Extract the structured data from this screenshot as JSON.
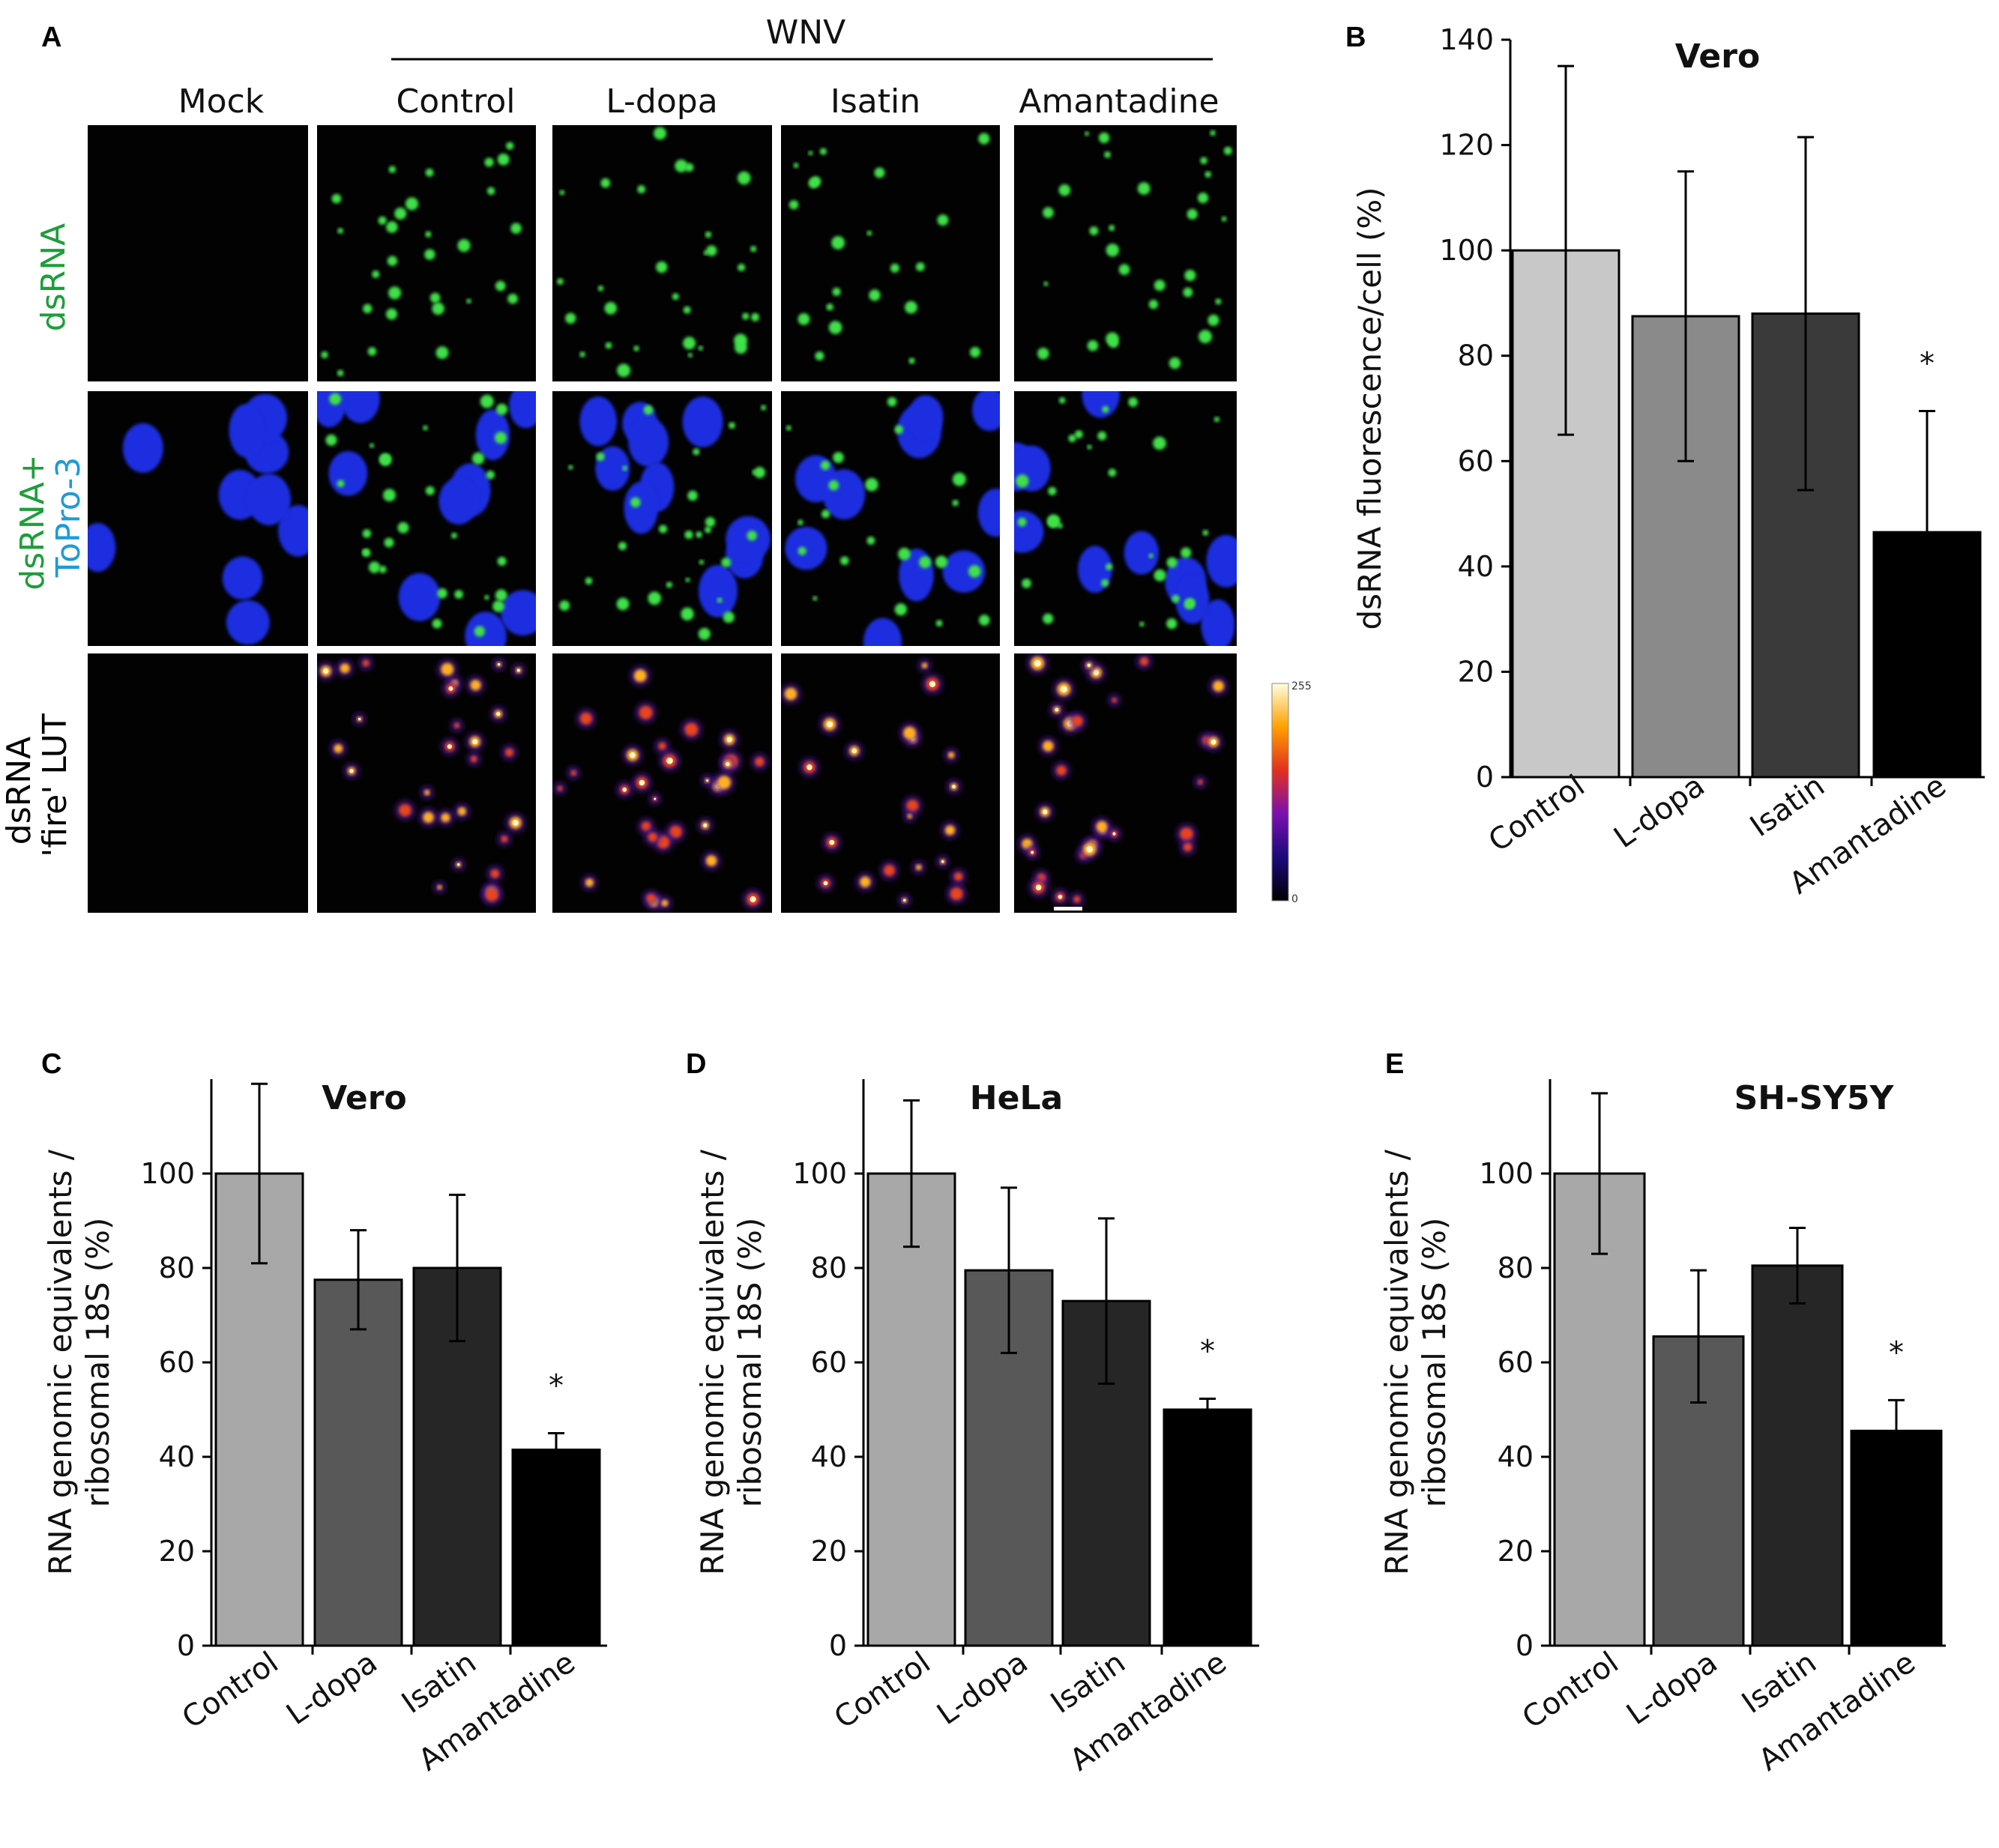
{
  "panel_letters": [
    "A",
    "B",
    "C",
    "D",
    "E"
  ],
  "panel_a": {
    "virus_label": "WNV",
    "column_labels": [
      "Mock",
      "Control",
      "L-dopa",
      "Isatin",
      "Amantadine"
    ],
    "row_labels": [
      {
        "line1": "dsRNA",
        "line2": "",
        "color1": "#1e9e3a",
        "color2": "#1e9e3a"
      },
      {
        "line1": "dsRNA+",
        "line2": "ToPro-3",
        "color1": "#1e9e3a",
        "color2": "#1d9bd6"
      },
      {
        "line1": "dsRNA",
        "line2": "'fire' LUT",
        "color1": "#000000",
        "color2": "#000000"
      }
    ],
    "colorbar_max": "255",
    "colorbar_min": "0",
    "colors": {
      "green_signal": "#3fe04a",
      "nuclei_blue": "#1f2fe0"
    }
  },
  "chart_data": [
    {
      "panel": "B",
      "type": "bar",
      "title": "Vero",
      "ylabel": "dsRNA fluorescence/cell (%)",
      "xlabel": "",
      "categories": [
        "Control",
        "L-dopa",
        "Isatin",
        "Amantadine"
      ],
      "values": [
        100,
        87.5,
        88,
        46.5
      ],
      "errors": [
        35,
        27.5,
        33.5,
        23
      ],
      "significance": [
        "",
        "",
        "",
        "*"
      ],
      "colors": [
        "#c8c8c8",
        "#8a8a8a",
        "#3a3a3a",
        "#000000"
      ],
      "ylim": [
        0,
        140
      ],
      "yticks": [
        0,
        20,
        40,
        60,
        80,
        100,
        120,
        140
      ],
      "grid": false
    },
    {
      "panel": "C",
      "type": "bar",
      "title": "Vero",
      "ylabel": "RNA genomic equivalents / ribosomal 18S (%)",
      "xlabel": "",
      "categories": [
        "Control",
        "L-dopa",
        "Isatin",
        "Amantadine"
      ],
      "values": [
        100,
        77.5,
        80,
        41.5
      ],
      "errors": [
        19,
        10.5,
        15.5,
        3.5
      ],
      "significance": [
        "",
        "",
        "",
        "*"
      ],
      "colors": [
        "#a8a8a8",
        "#585858",
        "#262626",
        "#000000"
      ],
      "ylim": [
        0,
        120
      ],
      "yticks": [
        0,
        20,
        40,
        60,
        80,
        100
      ],
      "grid": false
    },
    {
      "panel": "D",
      "type": "bar",
      "title": "HeLa",
      "ylabel": "RNA genomic equivalents / ribosomal 18S (%)",
      "xlabel": "",
      "categories": [
        "Control",
        "L-dopa",
        "Isatin",
        "Amantadine"
      ],
      "values": [
        100,
        79.5,
        73,
        50
      ],
      "errors": [
        15.5,
        17.5,
        17.5,
        2.3
      ],
      "significance": [
        "",
        "",
        "",
        "*"
      ],
      "colors": [
        "#a8a8a8",
        "#585858",
        "#262626",
        "#000000"
      ],
      "ylim": [
        0,
        120
      ],
      "yticks": [
        0,
        20,
        40,
        60,
        80,
        100
      ],
      "grid": false
    },
    {
      "panel": "E",
      "type": "bar",
      "title": "SH-SY5Y",
      "ylabel": "RNA genomic equivalents / ribosomal 18S (%)",
      "xlabel": "",
      "categories": [
        "Control",
        "L-dopa",
        "Isatin",
        "Amantadine"
      ],
      "values": [
        100,
        65.5,
        80.5,
        45.5
      ],
      "errors": [
        17,
        14,
        8,
        6.5
      ],
      "significance": [
        "",
        "",
        "",
        "*"
      ],
      "colors": [
        "#a8a8a8",
        "#585858",
        "#262626",
        "#000000"
      ],
      "ylim": [
        0,
        120
      ],
      "yticks": [
        0,
        20,
        40,
        60,
        80,
        100
      ],
      "grid": false
    }
  ]
}
